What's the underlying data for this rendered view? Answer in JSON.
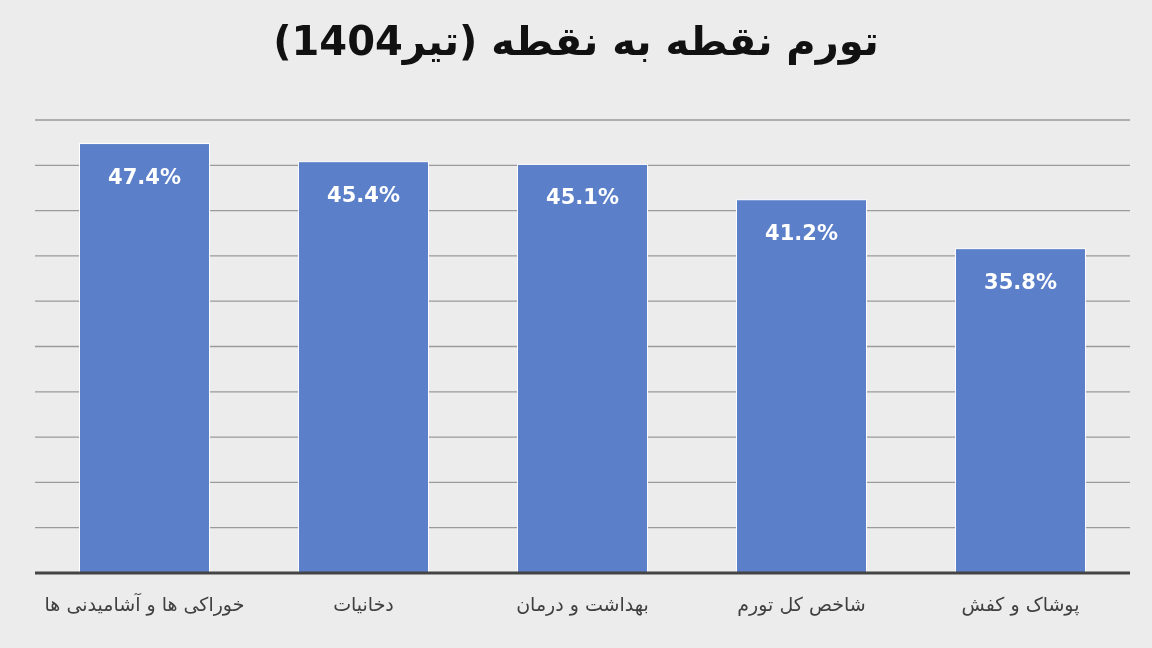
{
  "chart_data": {
    "type": "bar",
    "title": "تورم نقطه به نقطه (تیر1404)",
    "categories": [
      "خوراکی ها و آشامیدنی ها",
      "دخانیات",
      "بهداشت و درمان",
      "شاخص کل تورم",
      "پوشاک و کفش"
    ],
    "values": [
      47.4,
      45.4,
      45.1,
      41.2,
      35.8
    ],
    "value_labels": [
      "47.4%",
      "45.4%",
      "45.1%",
      "41.2%",
      "35.8%"
    ],
    "color": "#5b7fc8",
    "grid": "y"
  }
}
